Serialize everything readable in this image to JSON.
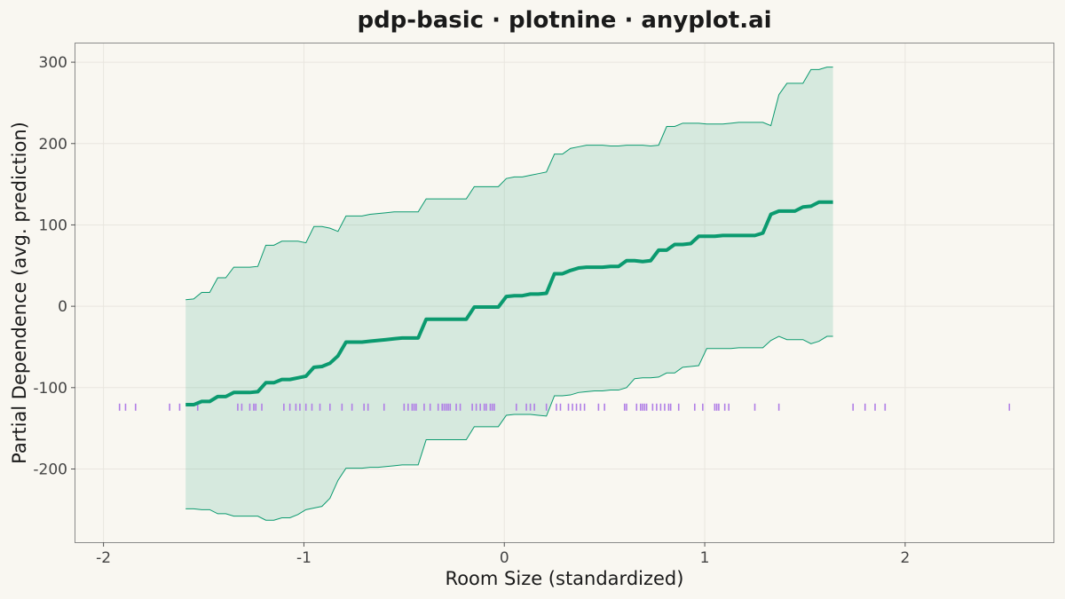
{
  "chart_data": {
    "type": "line",
    "title": "pdp-basic · plotnine · anyplot.ai",
    "xlabel": "Room Size (standardized)",
    "ylabel": "Partial Dependence (avg. prediction)",
    "xlim": [
      -2.14,
      2.74
    ],
    "ylim": [
      -290,
      323
    ],
    "x_ticks": [
      -2,
      -1,
      0,
      1,
      2
    ],
    "x_tick_labels": [
      "-2",
      "-1",
      "0",
      "1",
      "2"
    ],
    "y_ticks": [
      -200,
      -100,
      0,
      100,
      200,
      300
    ],
    "y_tick_labels": [
      "-200",
      "-100",
      "0",
      "100",
      "200",
      "300"
    ],
    "grid": true,
    "colors": {
      "line": "#0b9a6f",
      "band_fill": "#0b9a6f",
      "band_stroke": "#0b9a6f",
      "rug": "#b07ee6",
      "background": "#f9f7f1"
    },
    "series": [
      {
        "kind": "pdp_line",
        "x": [
          -1.59,
          -1.55,
          -1.51,
          -1.47,
          -1.43,
          -1.39,
          -1.35,
          -1.31,
          -1.27,
          -1.23,
          -1.19,
          -1.15,
          -1.11,
          -1.07,
          -1.03,
          -0.99,
          -0.95,
          -0.91,
          -0.87,
          -0.83,
          -0.79,
          -0.75,
          -0.71,
          -0.67,
          -0.63,
          -0.59,
          -0.55,
          -0.51,
          -0.47,
          -0.43,
          -0.39,
          -0.35,
          -0.31,
          -0.27,
          -0.23,
          -0.19,
          -0.15,
          -0.11,
          -0.07,
          -0.03,
          0.01,
          0.05,
          0.09,
          0.13,
          0.17,
          0.21,
          0.25,
          0.29,
          0.33,
          0.37,
          0.41,
          0.45,
          0.49,
          0.53,
          0.57,
          0.61,
          0.65,
          0.69,
          0.73,
          0.77,
          0.81,
          0.85,
          0.89,
          0.93,
          0.97,
          1.01,
          1.05,
          1.09,
          1.13,
          1.17,
          1.21,
          1.25,
          1.29,
          1.33,
          1.37,
          1.41,
          1.45,
          1.49,
          1.53,
          1.57,
          1.61,
          1.64
        ],
        "y": [
          -121,
          -121,
          -117,
          -117,
          -111,
          -111,
          -106,
          -106,
          -106,
          -105,
          -94,
          -94,
          -90,
          -90,
          -88,
          -86,
          -75,
          -74,
          -70,
          -61,
          -44,
          -44,
          -44,
          -43,
          -42,
          -41,
          -40,
          -39,
          -39,
          -39,
          -16,
          -16,
          -16,
          -16,
          -16,
          -16,
          -1,
          -1,
          -1,
          -1,
          12,
          13,
          13,
          15,
          15,
          16,
          40,
          40,
          44,
          47,
          48,
          48,
          48,
          49,
          49,
          56,
          56,
          55,
          56,
          69,
          69,
          76,
          76,
          77,
          86,
          86,
          86,
          87,
          87,
          87,
          87,
          87,
          90,
          113,
          117,
          117,
          117,
          122,
          123,
          128,
          128,
          128
        ]
      },
      {
        "kind": "band_upper",
        "x": [
          -1.59,
          -1.55,
          -1.51,
          -1.47,
          -1.43,
          -1.39,
          -1.35,
          -1.31,
          -1.27,
          -1.23,
          -1.19,
          -1.15,
          -1.11,
          -1.07,
          -1.03,
          -0.99,
          -0.95,
          -0.91,
          -0.87,
          -0.83,
          -0.79,
          -0.75,
          -0.71,
          -0.67,
          -0.63,
          -0.59,
          -0.55,
          -0.51,
          -0.47,
          -0.43,
          -0.39,
          -0.35,
          -0.31,
          -0.27,
          -0.23,
          -0.19,
          -0.15,
          -0.11,
          -0.07,
          -0.03,
          0.01,
          0.05,
          0.09,
          0.13,
          0.17,
          0.21,
          0.25,
          0.29,
          0.33,
          0.37,
          0.41,
          0.45,
          0.49,
          0.53,
          0.57,
          0.61,
          0.65,
          0.69,
          0.73,
          0.77,
          0.81,
          0.85,
          0.89,
          0.93,
          0.97,
          1.01,
          1.05,
          1.09,
          1.13,
          1.17,
          1.21,
          1.25,
          1.29,
          1.33,
          1.37,
          1.41,
          1.45,
          1.49,
          1.53,
          1.57,
          1.61,
          1.64
        ],
        "y": [
          8,
          9,
          17,
          17,
          35,
          35,
          48,
          48,
          48,
          49,
          75,
          75,
          80,
          80,
          80,
          78,
          98,
          98,
          96,
          92,
          111,
          111,
          111,
          113,
          114,
          115,
          116,
          116,
          116,
          116,
          132,
          132,
          132,
          132,
          132,
          132,
          147,
          147,
          147,
          147,
          157,
          159,
          159,
          161,
          163,
          165,
          187,
          187,
          194,
          196,
          198,
          198,
          198,
          197,
          197,
          198,
          198,
          198,
          197,
          198,
          221,
          221,
          225,
          225,
          225,
          224,
          224,
          224,
          225,
          226,
          226,
          226,
          226,
          222,
          260,
          274,
          274,
          274,
          291,
          291,
          294,
          294
        ]
      },
      {
        "kind": "band_lower",
        "x": [
          -1.59,
          -1.55,
          -1.51,
          -1.47,
          -1.43,
          -1.39,
          -1.35,
          -1.31,
          -1.27,
          -1.23,
          -1.19,
          -1.15,
          -1.11,
          -1.07,
          -1.03,
          -0.99,
          -0.95,
          -0.91,
          -0.87,
          -0.83,
          -0.79,
          -0.75,
          -0.71,
          -0.67,
          -0.63,
          -0.59,
          -0.55,
          -0.51,
          -0.47,
          -0.43,
          -0.39,
          -0.35,
          -0.31,
          -0.27,
          -0.23,
          -0.19,
          -0.15,
          -0.11,
          -0.07,
          -0.03,
          0.01,
          0.05,
          0.09,
          0.13,
          0.17,
          0.21,
          0.25,
          0.29,
          0.33,
          0.37,
          0.41,
          0.45,
          0.49,
          0.53,
          0.57,
          0.61,
          0.65,
          0.69,
          0.73,
          0.77,
          0.81,
          0.85,
          0.89,
          0.93,
          0.97,
          1.01,
          1.05,
          1.09,
          1.13,
          1.17,
          1.21,
          1.25,
          1.29,
          1.33,
          1.37,
          1.41,
          1.45,
          1.49,
          1.53,
          1.57,
          1.61,
          1.64
        ],
        "y": [
          -249,
          -249,
          -250,
          -250,
          -255,
          -255,
          -258,
          -258,
          -258,
          -258,
          -263,
          -263,
          -260,
          -260,
          -256,
          -250,
          -248,
          -246,
          -236,
          -214,
          -199,
          -199,
          -199,
          -198,
          -198,
          -197,
          -196,
          -195,
          -195,
          -195,
          -164,
          -164,
          -164,
          -164,
          -164,
          -164,
          -148,
          -148,
          -148,
          -148,
          -134,
          -133,
          -133,
          -133,
          -134,
          -135,
          -110,
          -110,
          -109,
          -106,
          -105,
          -104,
          -104,
          -103,
          -103,
          -100,
          -89,
          -88,
          -88,
          -87,
          -82,
          -82,
          -75,
          -74,
          -73,
          -52,
          -52,
          -52,
          -52,
          -51,
          -51,
          -51,
          -51,
          -42,
          -37,
          -41,
          -41,
          -41,
          -46,
          -43,
          -37,
          -37
        ]
      },
      {
        "kind": "rug",
        "x": [
          -1.92,
          -1.89,
          -1.84,
          -1.67,
          -1.62,
          -1.53,
          -1.33,
          -1.31,
          -1.27,
          -1.25,
          -1.24,
          -1.21,
          -1.1,
          -1.07,
          -1.04,
          -1.02,
          -0.99,
          -0.96,
          -0.92,
          -0.87,
          -0.81,
          -0.76,
          -0.7,
          -0.68,
          -0.6,
          -0.5,
          -0.48,
          -0.46,
          -0.45,
          -0.44,
          -0.4,
          -0.37,
          -0.33,
          -0.31,
          -0.3,
          -0.29,
          -0.28,
          -0.27,
          -0.24,
          -0.22,
          -0.16,
          -0.14,
          -0.12,
          -0.1,
          -0.09,
          -0.07,
          -0.06,
          -0.05,
          0.06,
          0.11,
          0.13,
          0.15,
          0.21,
          0.26,
          0.28,
          0.32,
          0.34,
          0.36,
          0.38,
          0.4,
          0.47,
          0.5,
          0.6,
          0.61,
          0.66,
          0.68,
          0.69,
          0.7,
          0.71,
          0.74,
          0.76,
          0.78,
          0.8,
          0.82,
          0.83,
          0.87,
          0.95,
          0.99,
          1.05,
          1.06,
          1.07,
          1.1,
          1.12,
          1.25,
          1.37,
          1.74,
          1.8,
          1.85,
          1.9,
          2.52
        ]
      }
    ]
  }
}
